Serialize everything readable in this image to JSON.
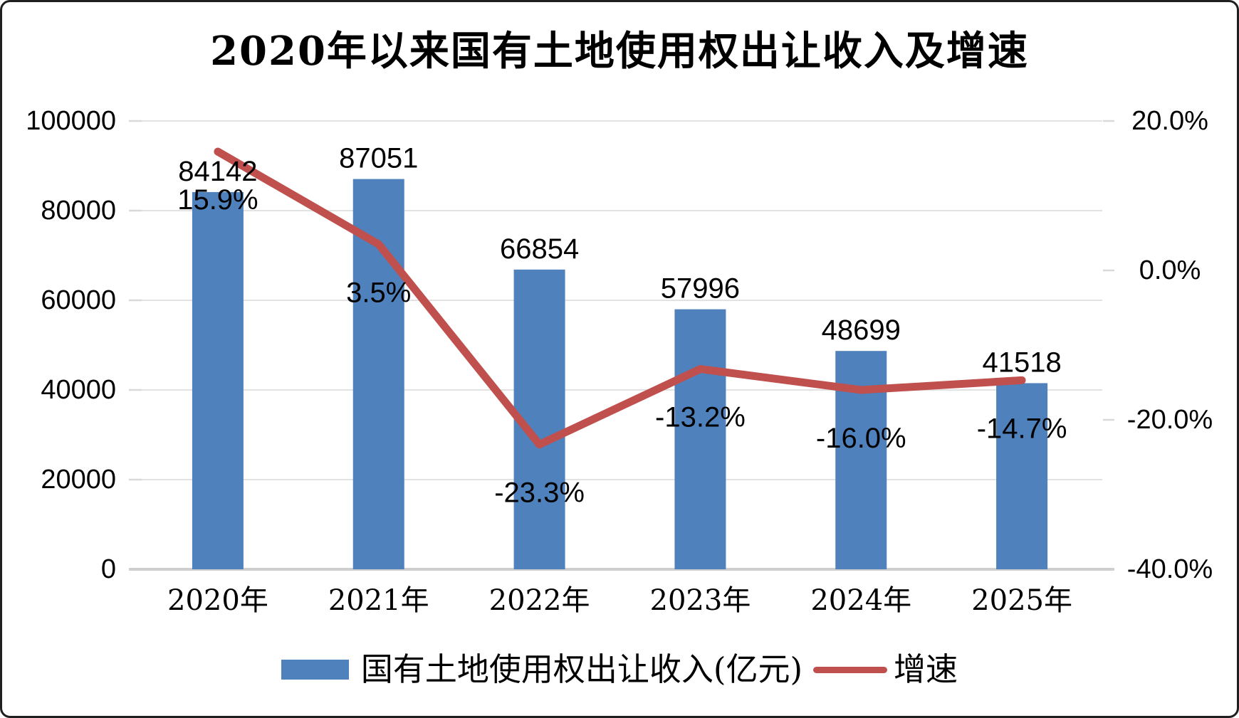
{
  "title": "2020年以来国有土地使用权出让收入及增速",
  "legend": {
    "bar_label": "国有土地使用权出让收入(亿元)",
    "line_label": "增速"
  },
  "colors": {
    "bar": "#4F81BD",
    "line": "#C0504D",
    "gridline": "#E2E2E2",
    "axis_line": "#CFCFCF",
    "tick": "#D9D9D9",
    "text": "#000000",
    "background": "#FFFFFF"
  },
  "chart_data": {
    "type": "bar",
    "subtype": "combo-bar-line",
    "title": "2020年以来国有土地使用权出让收入及增速",
    "categories": [
      "2020年",
      "2021年",
      "2022年",
      "2023年",
      "2024年",
      "2025年"
    ],
    "series": [
      {
        "name": "国有土地使用权出让收入(亿元)",
        "type": "bar",
        "axis": "left",
        "color": "#4F81BD",
        "values": [
          84142,
          87051,
          66854,
          57996,
          48699,
          41518
        ],
        "labels": [
          "84142",
          "87051",
          "66854",
          "57996",
          "48699",
          "41518"
        ]
      },
      {
        "name": "增速",
        "type": "line",
        "axis": "right",
        "color": "#C0504D",
        "values": [
          15.9,
          3.5,
          -23.3,
          -13.2,
          -16.0,
          -14.7
        ],
        "labels": [
          "15.9%",
          "3.5%",
          "-23.3%",
          "-13.2%",
          "-16.0%",
          "-14.7%"
        ]
      }
    ],
    "left_axis": {
      "min": 0,
      "max": 100000,
      "step": 20000,
      "tick_labels": [
        "100000",
        "80000",
        "60000",
        "40000",
        "20000",
        "0"
      ]
    },
    "right_axis": {
      "min": -40,
      "max": 20,
      "step": 20,
      "tick_labels": [
        "20.0%",
        "0.0%",
        "-20.0%",
        "-40.0%"
      ]
    },
    "grid": true,
    "legend_position": "bottom"
  }
}
